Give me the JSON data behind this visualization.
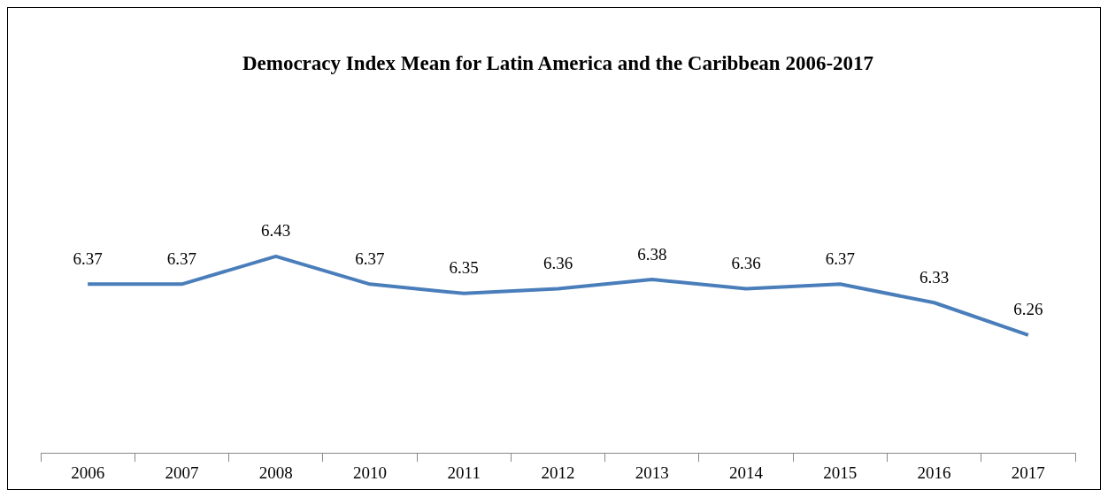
{
  "chart_data": {
    "type": "line",
    "title": "Democracy Index Mean for Latin America and the Caribbean 2006-2017",
    "categories": [
      "2006",
      "2007",
      "2008",
      "2010",
      "2011",
      "2012",
      "2013",
      "2014",
      "2015",
      "2016",
      "2017"
    ],
    "values": [
      6.37,
      6.37,
      6.43,
      6.37,
      6.35,
      6.36,
      6.38,
      6.36,
      6.37,
      6.33,
      6.26
    ],
    "color": "#4a7ebb",
    "data_labels": true,
    "marker": "none"
  }
}
